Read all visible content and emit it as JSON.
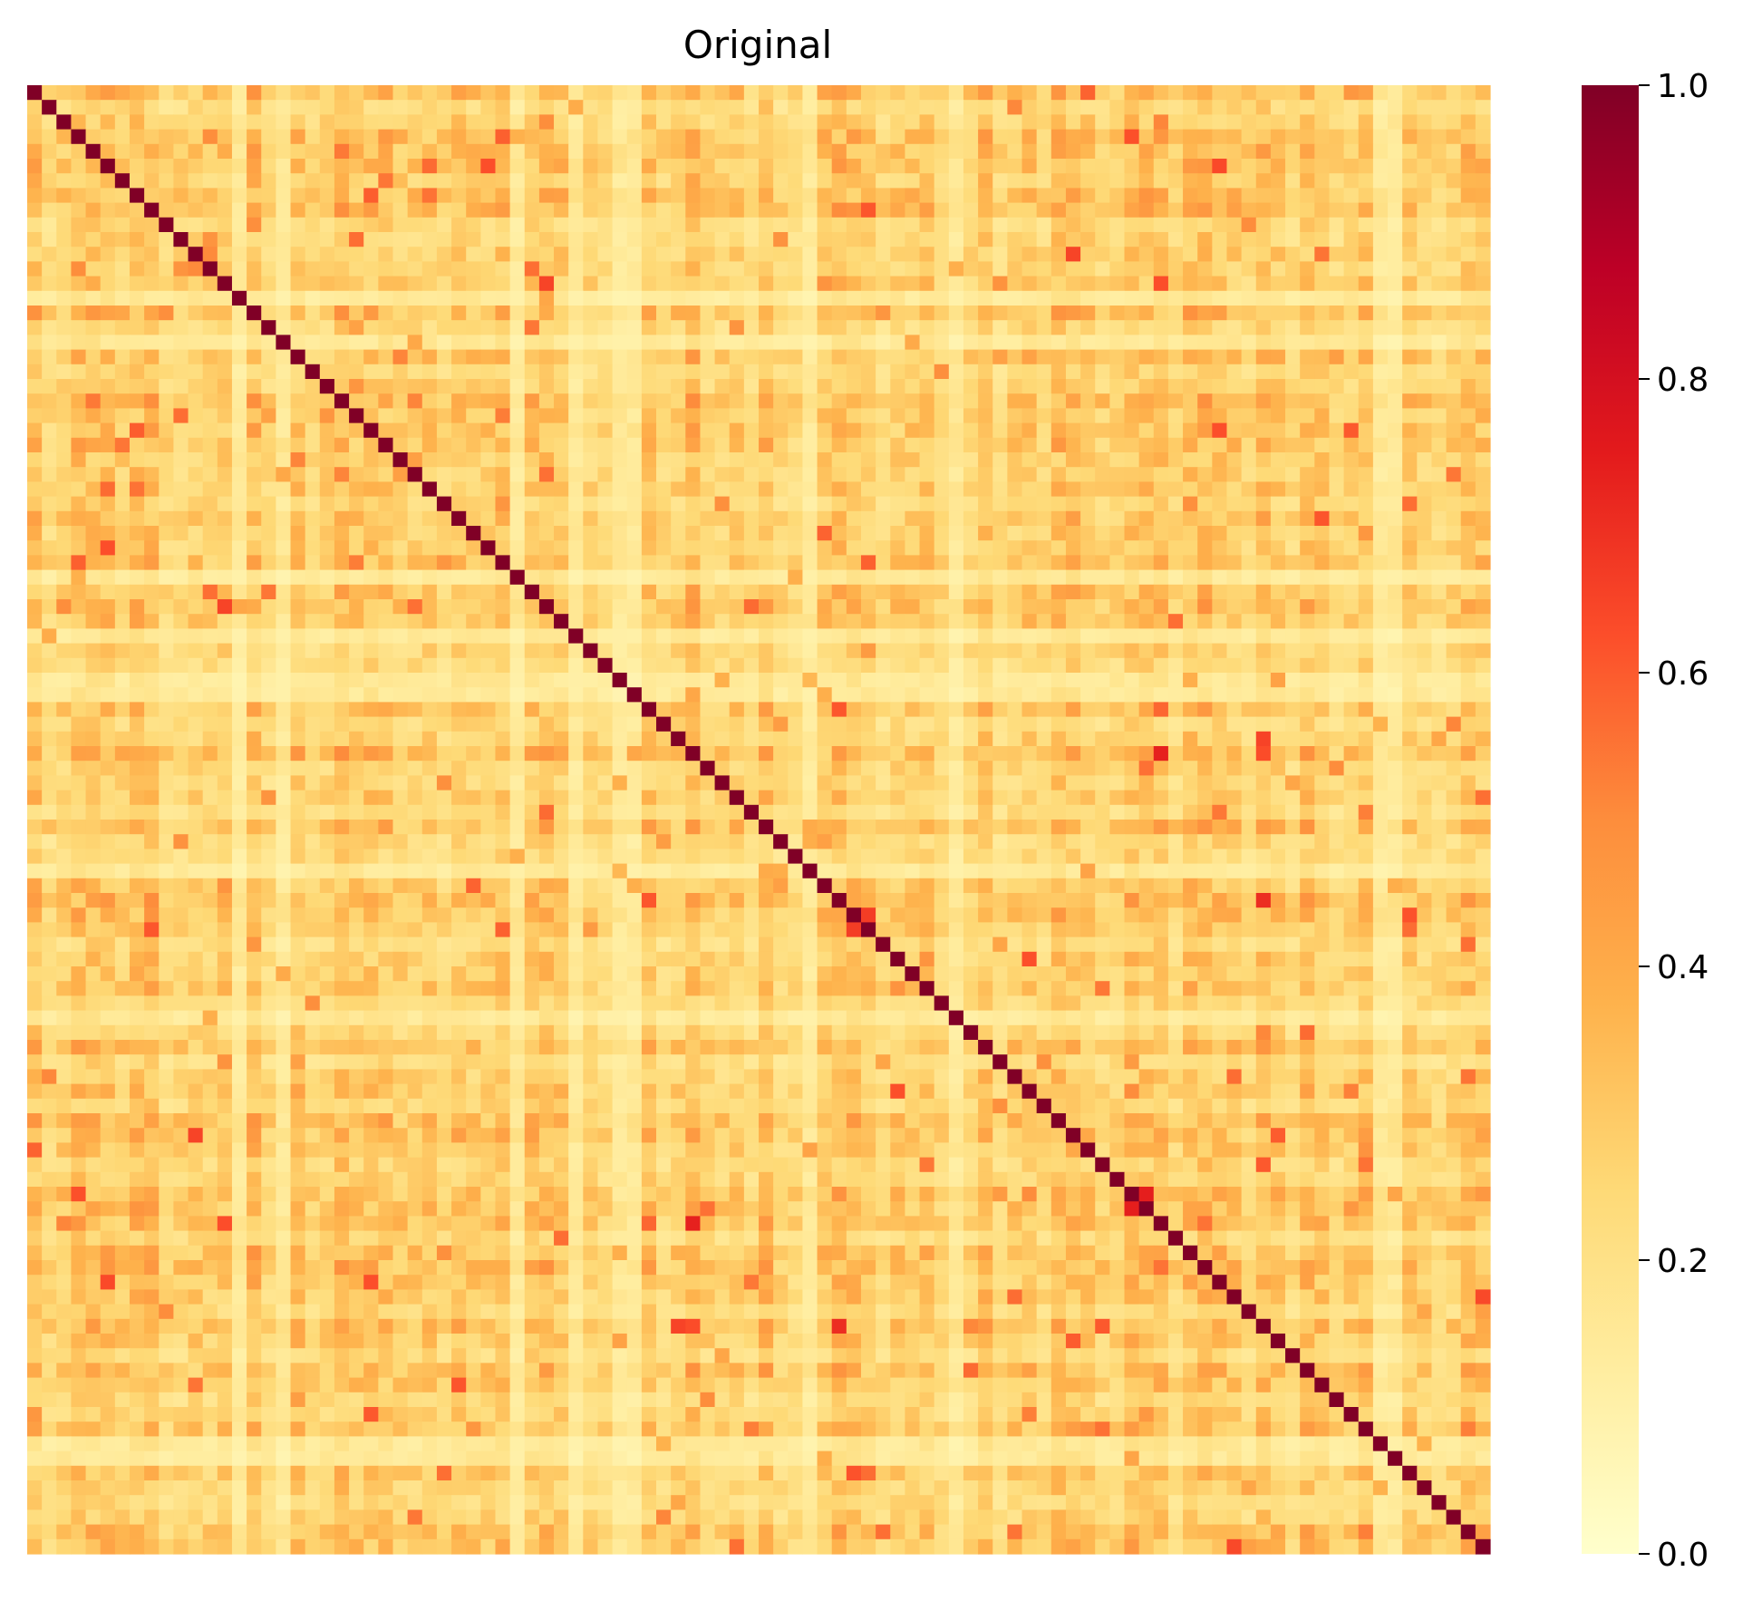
{
  "chart_data": {
    "type": "heatmap",
    "title": "Original",
    "xlabel": "",
    "ylabel": "",
    "n": 100,
    "seed": 20240611,
    "diagonal_value": 1.0,
    "off_diagonal_range": [
      0.0,
      0.6
    ],
    "colormap": "YlOrRd",
    "colormap_stops": [
      "#ffffcc",
      "#ffeda0",
      "#fed976",
      "#feb24c",
      "#fd8d3c",
      "#fc4e2a",
      "#e31a1c",
      "#bd0026",
      "#800026"
    ],
    "vmin": 0.0,
    "vmax": 1.0,
    "colorbar": {
      "ticks": [
        0.0,
        0.2,
        0.4,
        0.6,
        0.8,
        1.0
      ],
      "tick_labels": [
        "0.0",
        "0.2",
        "0.4",
        "0.6",
        "0.8",
        "1.0"
      ]
    },
    "note_values": "matrix is a symmetric similarity matrix with 1.0 on the diagonal and mostly low values (0.0–0.45) off-diagonal; individual cell values are not printed in the image"
  }
}
